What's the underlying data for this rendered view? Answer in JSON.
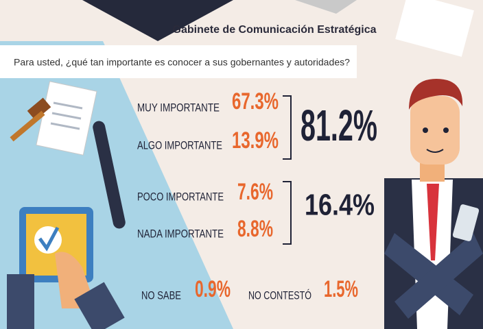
{
  "header": {
    "title": "Gabinete de Comunicación Estratégica",
    "question": "Para usted, ¿qué tan importante es conocer a sus gobernantes y autoridades?"
  },
  "responses": [
    {
      "label": "MUY IMPORTANTE",
      "value": "67.3%"
    },
    {
      "label": "ALGO IMPORTANTE",
      "value": "13.9%"
    },
    {
      "label": "POCO IMPORTANTE",
      "value": "7.6%"
    },
    {
      "label": "NADA IMPORTANTE",
      "value": "8.8%"
    }
  ],
  "groups": [
    {
      "total": "81.2%"
    },
    {
      "total": "16.4%"
    }
  ],
  "other": [
    {
      "label": "NO SABE",
      "value": "0.9%"
    },
    {
      "label": "NO CONTESTÓ",
      "value": "1.5%"
    }
  ]
}
